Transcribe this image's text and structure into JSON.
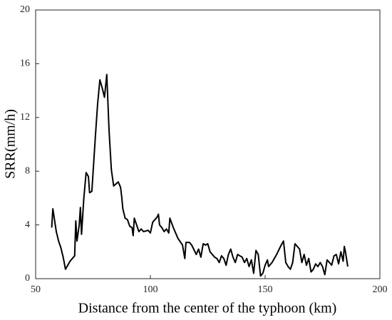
{
  "chart_data": {
    "type": "line",
    "xlabel": "Distance from the center of the typhoon (km)",
    "ylabel": "SRR(mm/h)",
    "xlim": [
      50,
      200
    ],
    "xticks": [
      50,
      100,
      150,
      200
    ],
    "ylim": [
      0,
      20
    ],
    "yticks": [
      0,
      4,
      8,
      12,
      16,
      20
    ],
    "series": [
      {
        "name": "SRR",
        "color": "#000000",
        "x": [
          57,
          57.5,
          59,
          60,
          61,
          62,
          63,
          64,
          65,
          67,
          67.5,
          68,
          69,
          69.5,
          70,
          71,
          72,
          73,
          73.5,
          74.5,
          76,
          77,
          78,
          79,
          80,
          81,
          82,
          83,
          84,
          86,
          87,
          87.5,
          88,
          89,
          90,
          91,
          92,
          92.5,
          93,
          94,
          95,
          96,
          97,
          99,
          100,
          101,
          103,
          103.5,
          104,
          105,
          106,
          107,
          108,
          108.5,
          110,
          112,
          114,
          115,
          115.5,
          117,
          118,
          120,
          121,
          122,
          123,
          124,
          125,
          126,
          128,
          129,
          130,
          131,
          132,
          133,
          134,
          135,
          136,
          137,
          138,
          140,
          141,
          142,
          143,
          144,
          145,
          146,
          147,
          148,
          149,
          150,
          151,
          151.5,
          153,
          155,
          157,
          158,
          159,
          160,
          161,
          162,
          163,
          164,
          165,
          166,
          167,
          168,
          169,
          170,
          171,
          172,
          173,
          174,
          175,
          176,
          177,
          178,
          179,
          180,
          181,
          182,
          183,
          184,
          184.5,
          185,
          186
        ],
        "values": [
          3.8,
          5.2,
          3.5,
          2.8,
          2.3,
          1.6,
          0.7,
          1.0,
          1.3,
          1.7,
          4.3,
          2.8,
          4.0,
          5.3,
          3.3,
          6.0,
          7.9,
          7.6,
          6.4,
          6.5,
          10.5,
          13.0,
          14.8,
          14.2,
          13.5,
          15.2,
          11.0,
          8.1,
          6.9,
          7.2,
          6.8,
          6.1,
          5.2,
          4.5,
          4.4,
          3.9,
          3.8,
          3.2,
          4.5,
          4.0,
          3.5,
          3.7,
          3.5,
          3.6,
          3.4,
          4.2,
          4.6,
          4.8,
          4.0,
          3.8,
          3.5,
          3.7,
          3.4,
          4.5,
          3.8,
          3.0,
          2.5,
          1.5,
          2.7,
          2.7,
          2.5,
          1.8,
          2.2,
          1.6,
          2.6,
          2.5,
          2.6,
          2.0,
          1.6,
          1.5,
          1.2,
          1.7,
          1.5,
          1.0,
          1.8,
          2.2,
          1.6,
          1.2,
          1.8,
          1.6,
          1.2,
          1.5,
          0.9,
          1.4,
          0.4,
          2.1,
          1.8,
          0.2,
          0.4,
          1.0,
          1.4,
          0.9,
          1.2,
          1.8,
          2.5,
          2.8,
          1.2,
          0.9,
          0.7,
          1.2,
          2.6,
          2.4,
          2.2,
          1.2,
          1.8,
          1.0,
          1.5,
          0.5,
          0.7,
          1.1,
          0.9,
          1.2,
          0.9,
          0.3,
          1.4,
          1.2,
          1.0,
          1.7,
          1.8,
          1.1,
          2.0,
          1.3,
          2.4,
          2.0,
          0.9
        ]
      }
    ]
  }
}
